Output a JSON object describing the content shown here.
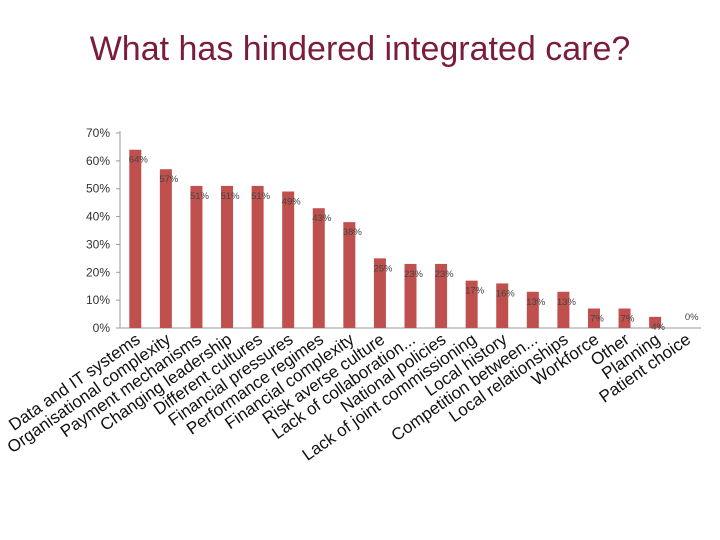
{
  "slide": {
    "title": "What has hindered integrated care?"
  },
  "chart_data": {
    "type": "bar",
    "title": "",
    "xlabel": "",
    "ylabel": "",
    "ylim": [
      0,
      70
    ],
    "ytick_step": 10,
    "ytick_labels": [
      "0%",
      "10%",
      "20%",
      "30%",
      "40%",
      "50%",
      "60%",
      "70%"
    ],
    "grid": false,
    "bar_color": "#c0504d",
    "categories": [
      "Data and IT systems",
      "Organisational complexity",
      "Payment mechanisms",
      "Changing leadership",
      "Different cultures",
      "Financial pressures",
      "Performance regimes",
      "Financial complexity",
      "Risk averse culture",
      "Lack of collaboration...",
      "National policies",
      "Lack of joint commissioning",
      "Local history",
      "Competition between...",
      "Local relationships",
      "Workforce",
      "Other",
      "Planning",
      "Patient choice"
    ],
    "values": [
      64,
      57,
      51,
      51,
      51,
      49,
      43,
      38,
      25,
      23,
      23,
      17,
      16,
      13,
      13,
      7,
      7,
      4,
      0
    ],
    "data_labels": [
      "64%",
      "57%",
      "51%",
      "51%",
      "51%",
      "49%",
      "43%",
      "38%",
      "25%",
      "23%",
      "23%",
      "17%",
      "16%",
      "13%",
      "13%",
      "7%",
      "7%",
      "4%",
      "0%"
    ]
  }
}
